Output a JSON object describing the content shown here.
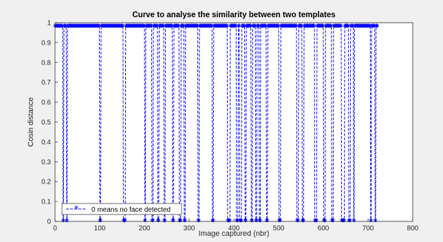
{
  "chart_data": {
    "type": "line",
    "title": "Curve to analyse the similarity between two templates",
    "xlabel": "Image captured (nbr)",
    "ylabel": "Cosin distance",
    "xlim": [
      0,
      800
    ],
    "ylim": [
      0,
      1
    ],
    "xticks": [
      0,
      100,
      200,
      300,
      400,
      500,
      600,
      700,
      800
    ],
    "yticks": [
      0,
      0.1,
      0.2,
      0.3,
      0.4,
      0.5,
      0.6,
      0.7,
      0.8,
      0.9,
      1
    ],
    "grid": false,
    "legend_position": "bottom-left",
    "line_color": "#0000ff",
    "series": [
      {
        "name": "0 means no face detected",
        "marker": "*",
        "line_style": "dashed",
        "high_segments": [
          [
            0,
            17
          ],
          [
            20,
            25
          ],
          [
            28,
            99
          ],
          [
            103,
            152
          ],
          [
            158,
            200
          ],
          [
            203,
            216
          ],
          [
            220,
            229
          ],
          [
            233,
            243
          ],
          [
            247,
            262
          ],
          [
            266,
            277
          ],
          [
            282,
            288
          ],
          [
            292,
            319
          ],
          [
            323,
            351
          ],
          [
            355,
            385
          ],
          [
            392,
            405
          ],
          [
            410,
            412
          ],
          [
            418,
            424
          ],
          [
            428,
            438
          ],
          [
            442,
            448
          ],
          [
            452,
            456
          ],
          [
            460,
            472
          ],
          [
            476,
            500
          ],
          [
            505,
            540
          ],
          [
            545,
            552
          ],
          [
            557,
            580
          ],
          [
            586,
            600
          ],
          [
            605,
            618
          ],
          [
            623,
            640
          ],
          [
            648,
            656
          ],
          [
            661,
            667
          ],
          [
            670,
            705
          ],
          [
            708,
            715
          ],
          [
            718,
            721
          ]
        ],
        "high_value": 0.98,
        "low_value": 0
      }
    ]
  }
}
